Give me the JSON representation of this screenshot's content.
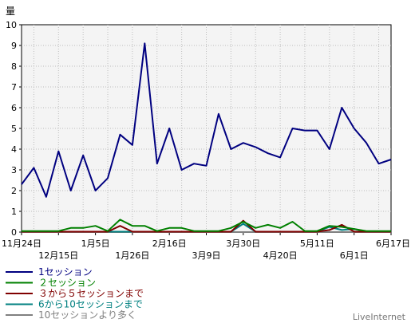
{
  "chart_data": {
    "type": "line",
    "ylabel": "量",
    "ylim": [
      0,
      10
    ],
    "yticks": [
      "0",
      "1",
      "2",
      "3",
      "4",
      "5",
      "6",
      "7",
      "8",
      "9",
      "10"
    ],
    "grid": true,
    "x_ticks_upper": [
      {
        "label": "11月24日",
        "index": 0
      },
      {
        "label": "1月5日",
        "index": 6
      },
      {
        "label": "2月16日",
        "index": 12
      },
      {
        "label": "3月30日",
        "index": 18
      },
      {
        "label": "5月11日",
        "index": 24
      },
      {
        "label": "6月17日",
        "index": 30
      }
    ],
    "x_ticks_lower": [
      {
        "label": "12月15日",
        "index": 3
      },
      {
        "label": "1月26日",
        "index": 9
      },
      {
        "label": "3月9日",
        "index": 15
      },
      {
        "label": "4月20日",
        "index": 21
      },
      {
        "label": "6月1日",
        "index": 27
      }
    ],
    "series": [
      {
        "name": "1セッション",
        "color": "#000080",
        "values": [
          2.3,
          3.1,
          1.7,
          3.9,
          2.0,
          3.7,
          2.0,
          2.6,
          4.7,
          4.2,
          9.1,
          3.3,
          5.0,
          3.0,
          3.3,
          3.2,
          5.7,
          4.0,
          4.3,
          4.1,
          3.8,
          3.6,
          5.0,
          4.9,
          4.9,
          4.0,
          6.0,
          5.0,
          4.3,
          3.3,
          3.5
        ]
      },
      {
        "name": "２セッション",
        "color": "#008000",
        "values": [
          0.05,
          0.05,
          0.05,
          0.05,
          0.2,
          0.2,
          0.3,
          0.05,
          0.6,
          0.3,
          0.3,
          0.05,
          0.2,
          0.2,
          0.05,
          0.05,
          0.05,
          0.2,
          0.5,
          0.2,
          0.35,
          0.2,
          0.5,
          0.05,
          0.05,
          0.3,
          0.25,
          0.15,
          0.05,
          0.05,
          0.05
        ]
      },
      {
        "name": "３から５セッションまで",
        "color": "#800000",
        "values": [
          0.02,
          0.02,
          0.02,
          0.02,
          0.02,
          0.02,
          0.02,
          0.02,
          0.3,
          0.02,
          0.02,
          0.02,
          0.02,
          0.02,
          0.02,
          0.02,
          0.02,
          0.02,
          0.55,
          0.02,
          0.02,
          0.02,
          0.02,
          0.02,
          0.02,
          0.1,
          0.35,
          0.02,
          0.02,
          0.02,
          0.02
        ]
      },
      {
        "name": "6から10セッションまで",
        "color": "#008080",
        "values": [
          0.02,
          0.02,
          0.02,
          0.02,
          0.02,
          0.02,
          0.02,
          0.02,
          0.02,
          0.02,
          0.02,
          0.02,
          0.02,
          0.02,
          0.02,
          0.02,
          0.02,
          0.02,
          0.4,
          0.02,
          0.02,
          0.02,
          0.02,
          0.02,
          0.02,
          0.25,
          0.1,
          0.15,
          0.02,
          0.02,
          0.02
        ]
      },
      {
        "name": "10セッションより多く",
        "color": "#808080",
        "values": [
          0,
          0,
          0,
          0,
          0,
          0,
          0,
          0,
          0,
          0,
          0,
          0,
          0,
          0,
          0,
          0,
          0,
          0,
          0,
          0,
          0,
          0,
          0,
          0,
          0,
          0,
          0,
          0,
          0,
          0,
          0
        ]
      }
    ]
  },
  "brand": "LiveInternet"
}
